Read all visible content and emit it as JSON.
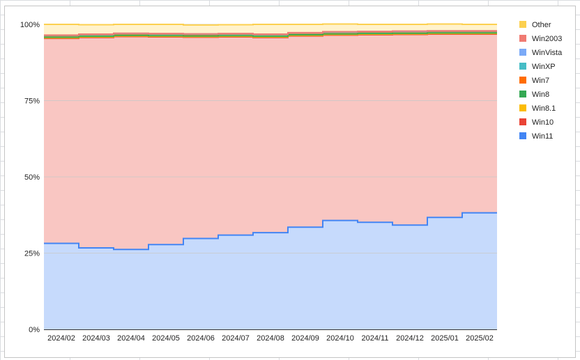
{
  "chart_data": {
    "type": "area",
    "stacked": true,
    "step": true,
    "categories": [
      "2024/02",
      "2024/03",
      "2024/04",
      "2024/05",
      "2024/06",
      "2024/07",
      "2024/08",
      "2024/09",
      "2024/10",
      "2024/11",
      "2024/12",
      "2025/01",
      "2025/02"
    ],
    "ylim": [
      0,
      100
    ],
    "yticks": [
      0,
      25,
      50,
      75,
      100
    ],
    "ytick_labels": [
      "0%",
      "25%",
      "50%",
      "75%",
      "100%"
    ],
    "grid": true,
    "legend_position": "right",
    "series": [
      {
        "name": "Win11",
        "color": "#4285f4",
        "fill": "#c6dafc",
        "values": [
          28.2,
          26.7,
          26.2,
          27.8,
          29.8,
          30.9,
          31.7,
          33.5,
          35.7,
          35.1,
          34.2,
          36.7,
          38.2
        ]
      },
      {
        "name": "Win10",
        "color": "#ea4335",
        "fill": "#f9c6c2",
        "values": [
          67.2,
          69.0,
          69.8,
          68.1,
          66.0,
          65.0,
          64.0,
          62.7,
          60.8,
          61.5,
          62.5,
          60.1,
          58.6
        ]
      },
      {
        "name": "Win8.1",
        "color": "#fbbc04",
        "fill": "#feefc3",
        "values": [
          0.2,
          0.2,
          0.2,
          0.2,
          0.2,
          0.2,
          0.2,
          0.2,
          0.2,
          0.2,
          0.2,
          0.2,
          0.2
        ]
      },
      {
        "name": "Win8",
        "color": "#34a853",
        "fill": "#c9e9d1",
        "values": [
          0.2,
          0.2,
          0.2,
          0.2,
          0.2,
          0.2,
          0.2,
          0.2,
          0.2,
          0.2,
          0.2,
          0.2,
          0.2
        ]
      },
      {
        "name": "Win7",
        "color": "#ff6d01",
        "fill": "#ffdac0",
        "values": [
          0.5,
          0.5,
          0.5,
          0.5,
          0.5,
          0.5,
          0.5,
          0.5,
          0.5,
          0.5,
          0.5,
          0.5,
          0.5
        ]
      },
      {
        "name": "WinXP",
        "color": "#46bdc6",
        "fill": "#cdeef0",
        "values": [
          0.1,
          0.1,
          0.1,
          0.1,
          0.1,
          0.1,
          0.1,
          0.1,
          0.1,
          0.1,
          0.1,
          0.1,
          0.1
        ]
      },
      {
        "name": "WinVista",
        "color": "#7baaf7",
        "fill": "#dde8fd",
        "values": [
          0.05,
          0.05,
          0.05,
          0.05,
          0.05,
          0.05,
          0.05,
          0.05,
          0.05,
          0.05,
          0.05,
          0.05,
          0.05
        ]
      },
      {
        "name": "Win2003",
        "color": "#f07b72",
        "fill": "#fbdedb",
        "values": [
          0.05,
          0.05,
          0.05,
          0.05,
          0.05,
          0.05,
          0.05,
          0.05,
          0.05,
          0.05,
          0.05,
          0.05,
          0.05
        ]
      },
      {
        "name": "Other",
        "color": "#fcd04f",
        "fill": "#fff2cc",
        "values": [
          3.5,
          3.1,
          2.9,
          3.0,
          2.9,
          2.9,
          3.2,
          2.7,
          2.5,
          2.3,
          2.2,
          2.2,
          2.1
        ]
      }
    ],
    "legend_order": [
      "Other",
      "Win2003",
      "WinVista",
      "WinXP",
      "Win7",
      "Win8",
      "Win8.1",
      "Win10",
      "Win11"
    ]
  }
}
